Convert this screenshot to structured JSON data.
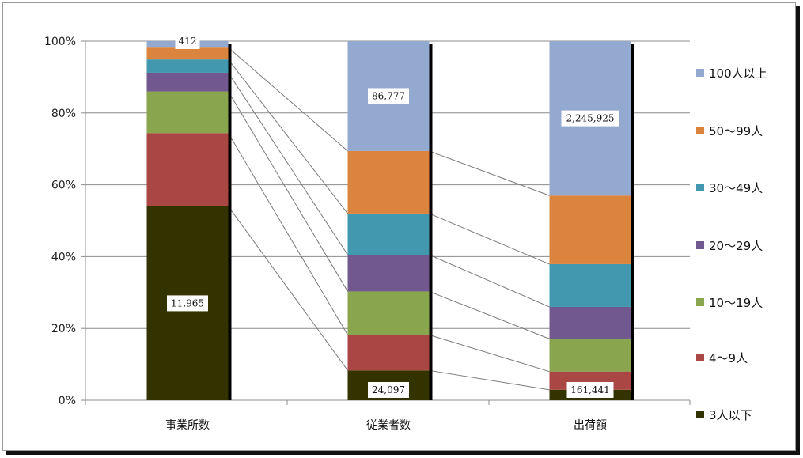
{
  "chart_data": {
    "type": "bar",
    "stacked": true,
    "percent": true,
    "categories": [
      "事業所数",
      "従業者数",
      "出荷額"
    ],
    "y_ticks": [
      "0%",
      "20%",
      "40%",
      "60%",
      "80%",
      "100%"
    ],
    "ylim": [
      0,
      100
    ],
    "grid": true,
    "series_lines": true,
    "legend_position": "right",
    "series": [
      {
        "name": "3人以下",
        "color": "#333300",
        "values": [
          54,
          8.3,
          2.9
        ]
      },
      {
        "name": "4～9人",
        "color": "#aa4644",
        "values": [
          20.4,
          9.9,
          5.1
        ]
      },
      {
        "name": "10～19人",
        "color": "#89a54e",
        "values": [
          11.6,
          12.1,
          9.1
        ]
      },
      {
        "name": "20～29人",
        "color": "#71588f",
        "values": [
          5.2,
          10.2,
          8.9
        ]
      },
      {
        "name": "30～49人",
        "color": "#4198af",
        "values": [
          3.7,
          11.5,
          11.9
        ]
      },
      {
        "name": "50～99人",
        "color": "#db843d",
        "values": [
          3.3,
          17.4,
          19.1
        ]
      },
      {
        "name": "100人以上",
        "color": "#93a9cf",
        "values": [
          1.8,
          30.6,
          43.0
        ]
      }
    ],
    "data_labels": [
      {
        "category": 0,
        "series": 0,
        "text": "11,965"
      },
      {
        "category": 0,
        "series": 6,
        "text": "412"
      },
      {
        "category": 1,
        "series": 0,
        "text": "24,097"
      },
      {
        "category": 1,
        "series": 6,
        "text": "86,777"
      },
      {
        "category": 2,
        "series": 0,
        "text": "161,441"
      },
      {
        "category": 2,
        "series": 6,
        "text": "2,245,925"
      }
    ]
  }
}
